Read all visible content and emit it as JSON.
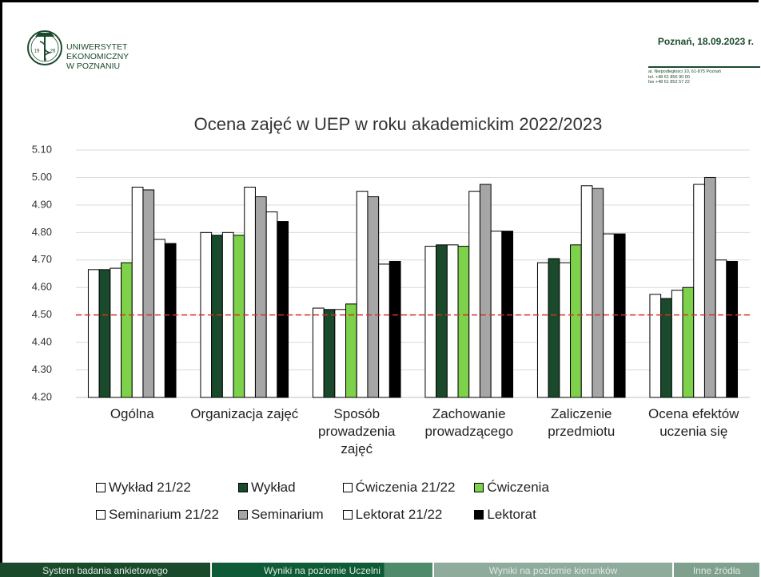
{
  "header": {
    "university": [
      "UNIWERSYTET",
      "EKONOMICZNY",
      "W POZNANIU"
    ],
    "logo_years": [
      "19",
      "26"
    ],
    "date": "Poznań, 18.09.2023 r.",
    "address": [
      "al. Niepodległości 10, 61-875 Poznań",
      "tel. +48 61 856 90 00",
      "fax +48 61 852 57 22"
    ]
  },
  "chart_data": {
    "type": "bar",
    "title": "Ocena zajęć w UEP w roku akademickim 2022/2023",
    "categories": [
      "Ogólna",
      "Organizacja zajęć",
      "Sposób prowadzenia zajęć",
      "Zachowanie prowadzącego",
      "Zaliczenie przedmiotu",
      "Ocena efektów uczenia się"
    ],
    "series": [
      {
        "name": "Wykład 21/22",
        "color": "#ffffff",
        "values": [
          4.665,
          4.8,
          4.525,
          4.75,
          4.69,
          4.575
        ]
      },
      {
        "name": "Wykład",
        "color": "#1a4a2c",
        "values": [
          4.665,
          4.79,
          4.52,
          4.755,
          4.705,
          4.56
        ]
      },
      {
        "name": "Ćwiczenia 21/22",
        "color": "#ffffff",
        "values": [
          4.67,
          4.8,
          4.52,
          4.755,
          4.69,
          4.59
        ]
      },
      {
        "name": "Ćwiczenia",
        "color": "#7ed14a",
        "values": [
          4.69,
          4.79,
          4.54,
          4.75,
          4.755,
          4.6
        ]
      },
      {
        "name": "Seminarium 21/22",
        "color": "#ffffff",
        "values": [
          4.965,
          4.965,
          4.95,
          4.95,
          4.97,
          4.975
        ]
      },
      {
        "name": "Seminarium",
        "color": "#a6a6a6",
        "values": [
          4.955,
          4.93,
          4.93,
          4.975,
          4.96,
          5.0
        ]
      },
      {
        "name": "Lektorat 21/22",
        "color": "#ffffff",
        "values": [
          4.775,
          4.875,
          4.685,
          4.805,
          4.795,
          4.7
        ]
      },
      {
        "name": "Lektorat",
        "color": "#000000",
        "values": [
          4.76,
          4.84,
          4.695,
          4.805,
          4.795,
          4.695
        ]
      }
    ],
    "ylim": [
      4.2,
      5.1
    ],
    "yticks": [
      {
        "value": 4.2,
        "label": "4.20"
      },
      {
        "value": 4.3,
        "label": "4.30"
      },
      {
        "value": 4.4,
        "label": "4.40"
      },
      {
        "value": 4.5,
        "label": "4.50"
      },
      {
        "value": 4.6,
        "label": "4.60"
      },
      {
        "value": 4.7,
        "label": "4.70"
      },
      {
        "value": 4.8,
        "label": "4.80"
      },
      {
        "value": 4.9,
        "label": "4.90"
      },
      {
        "value": 5.0,
        "label": "5.00"
      },
      {
        "value": 5.1,
        "label": "5.10"
      }
    ],
    "grid": true,
    "reference_line": {
      "value": 4.5,
      "color": "#d9302c"
    },
    "legend": "bottom"
  },
  "footer": {
    "tabs": [
      "System badania ankietowego",
      "Wyniki na poziomie Uczelni",
      "Wyniki na poziomie kierunków",
      "Inne źródła"
    ]
  }
}
